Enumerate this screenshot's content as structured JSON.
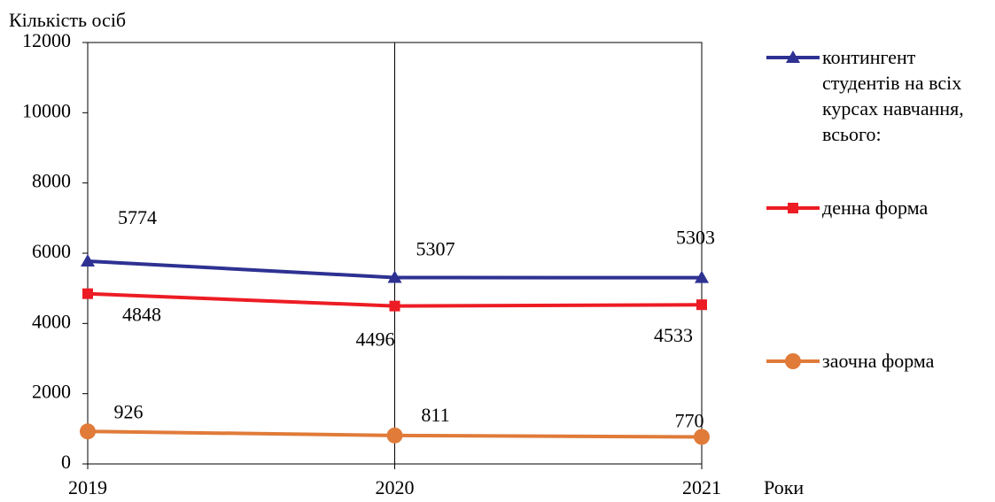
{
  "chart_data": {
    "type": "line",
    "y_label": "Кількість осіб",
    "x_label": "Роки",
    "categories": [
      "2019",
      "2020",
      "2021"
    ],
    "series": [
      {
        "name": "контингент студентів на всіх курсах навчання, всього:",
        "color": "#2e3192",
        "marker": "triangle",
        "values": [
          5774,
          5307,
          5303
        ]
      },
      {
        "name": "денна форма",
        "color": "#ed1c24",
        "marker": "square",
        "values": [
          4848,
          4496,
          4533
        ]
      },
      {
        "name": "заочна форма",
        "color": "#e07b39",
        "marker": "circle",
        "values": [
          926,
          811,
          770
        ]
      }
    ],
    "ylim": [
      0,
      12000
    ],
    "yticks": [
      0,
      2000,
      4000,
      6000,
      8000,
      10000,
      12000
    ],
    "legend": "right"
  }
}
